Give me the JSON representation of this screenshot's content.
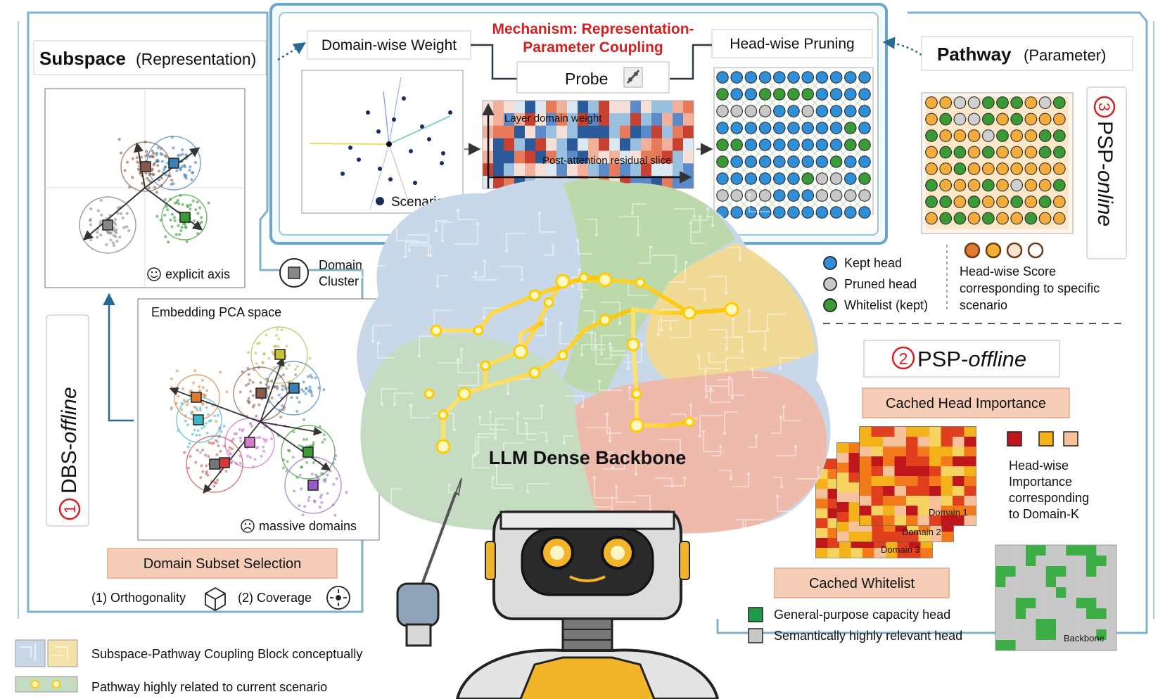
{
  "left_panel": {
    "subspace_title": "Subspace",
    "subspace_sub": "(Representation)",
    "explicit_axis": "explicit axis",
    "domain_cluster": [
      "Domain",
      "Cluster"
    ],
    "embedding_title": "Embedding PCA space",
    "massive_domains": "massive domains",
    "dbs_number": "1",
    "dbs_label": "DBS-",
    "dbs_label_italic": "offline",
    "subset_selection": "Domain Subset Selection",
    "orthogonality": "(1) Orthogonality",
    "coverage": "(2) Coverage"
  },
  "mechanism": {
    "title_line1": "Mechanism: Representation-",
    "title_line2": "Parameter Coupling",
    "domain_weight": "Domain-wise Weight",
    "probe": "Probe",
    "scenario": "Scenario",
    "layer_weight": "Layer domain weight",
    "residual_slice": "Post-attention residual slice",
    "head_pruning": "Head-wise Pruning",
    "accent_red": "#d42020"
  },
  "right_panel": {
    "pathway_title": "Pathway",
    "pathway_sub": "(Parameter)",
    "psp_online_number": "3",
    "psp_online_label": "PSP-",
    "psp_online_italic": "online",
    "legend": {
      "kept": "Kept head",
      "pruned": "Pruned head",
      "whitelist": "Whitelist (kept)"
    },
    "score_caption": [
      "Head-wise Score",
      "corresponding to specific",
      "scenario"
    ],
    "psp_offline_number": "2",
    "psp_offline_label": "PSP-",
    "psp_offline_italic": "offline",
    "cached_importance": "Cached Head Importance",
    "domain_labels": [
      "Domain 1",
      "Domain 2",
      "Domain 3"
    ],
    "importance_caption": [
      "Head-wise",
      "Importance",
      "corresponding",
      "to Domain-K"
    ],
    "cached_whitelist": "Cached Whitelist",
    "general_head": "General-purpose capacity head",
    "semantic_head": "Semantically highly relevant head",
    "backbone": "Backbone",
    "colors": {
      "kept": "#2f8fd8",
      "pruned": "#c8c8c8",
      "whitelist": "#3a9a36",
      "orange": "#f1a53a"
    }
  },
  "center": {
    "backbone_label": "LLM Dense Backbone"
  },
  "bottom_legend": {
    "coupling_block": "Subspace-Pathway Coupling Block conceptually",
    "pathway_related": "Pathway highly related to current scenario"
  }
}
